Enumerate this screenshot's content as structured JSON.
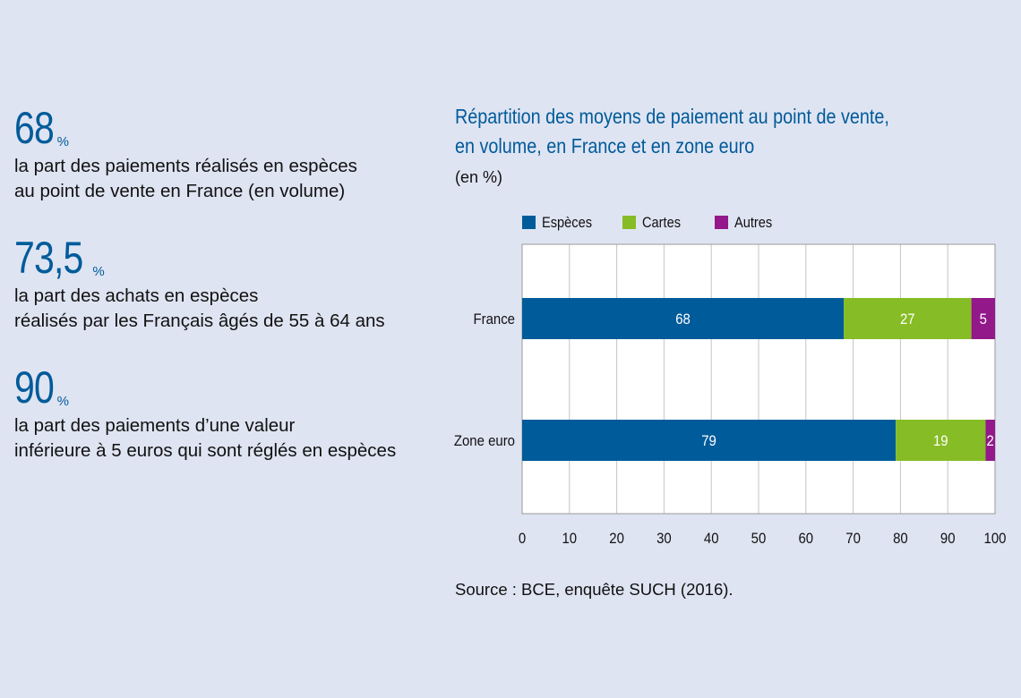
{
  "stats": [
    {
      "value": "68",
      "unit": "%",
      "lines": [
        "la part des paiements réalisés en espèces",
        "au point de vente en France (en volume)"
      ]
    },
    {
      "value": "73,5",
      "unit": "%",
      "lines": [
        "la part des achats en espèces",
        "réalisés par les Français âgés de 55 à 64 ans"
      ]
    },
    {
      "value": "90",
      "unit": "%",
      "lines": [
        "la part des paiements d’une valeur",
        "inférieure à 5 euros qui sont réglés en espèces"
      ]
    }
  ],
  "chart_data": {
    "type": "bar",
    "orientation": "horizontal",
    "stacked": true,
    "title_lines": [
      "Répartition des moyens de paiement au point de vente,",
      "en volume, en France et en zone euro"
    ],
    "unit_label": "(en %)",
    "categories": [
      "France",
      "Zone euro"
    ],
    "series": [
      {
        "name": "Espèces",
        "color": "#005b9a",
        "values": [
          68,
          79
        ]
      },
      {
        "name": "Cartes",
        "color": "#86bc25",
        "values": [
          27,
          19
        ]
      },
      {
        "name": "Autres",
        "color": "#93188a",
        "values": [
          5,
          2
        ]
      }
    ],
    "xlim": [
      0,
      100
    ],
    "xticks": [
      "0",
      "10",
      "20",
      "30",
      "40",
      "50",
      "60",
      "70",
      "80",
      "90",
      "100"
    ],
    "grid": true,
    "legend_position": "top"
  },
  "source": "Source : BCE, enquête SUCH (2016)."
}
